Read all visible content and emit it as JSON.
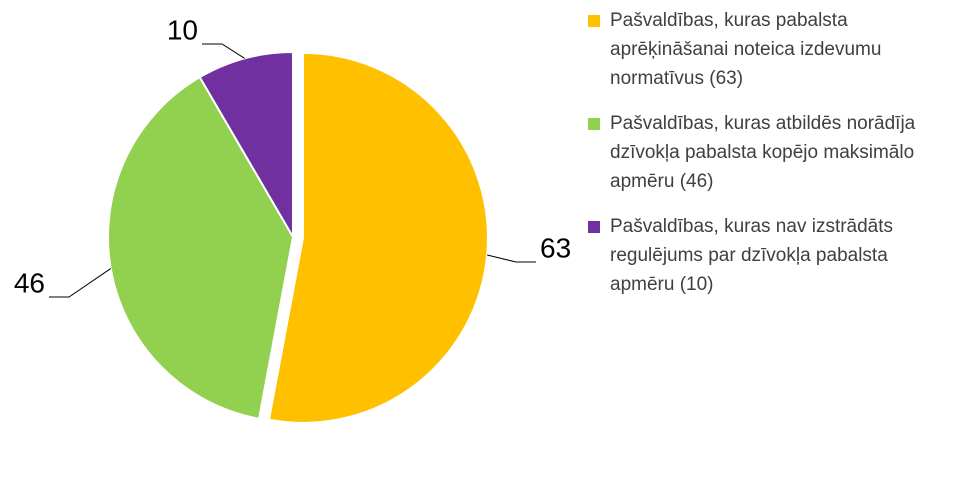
{
  "chart_data": {
    "type": "pie",
    "categories": [
      "Pašvaldības, kuras pabalsta aprēķināšanai noteica izdevumu normatīvus (63)",
      "Pašvaldības, kuras atbildēs norādīja dzīvokļa pabalsta kopējo maksimālo apmēru (46)",
      "Pašvaldības, kuras nav izstrādāts regulējums par dzīvokļa pabalsta apmēru (10)"
    ],
    "values": [
      63,
      46,
      10
    ],
    "colors": [
      "#ffc000",
      "#92d050",
      "#7030a0"
    ],
    "legend": "right"
  }
}
